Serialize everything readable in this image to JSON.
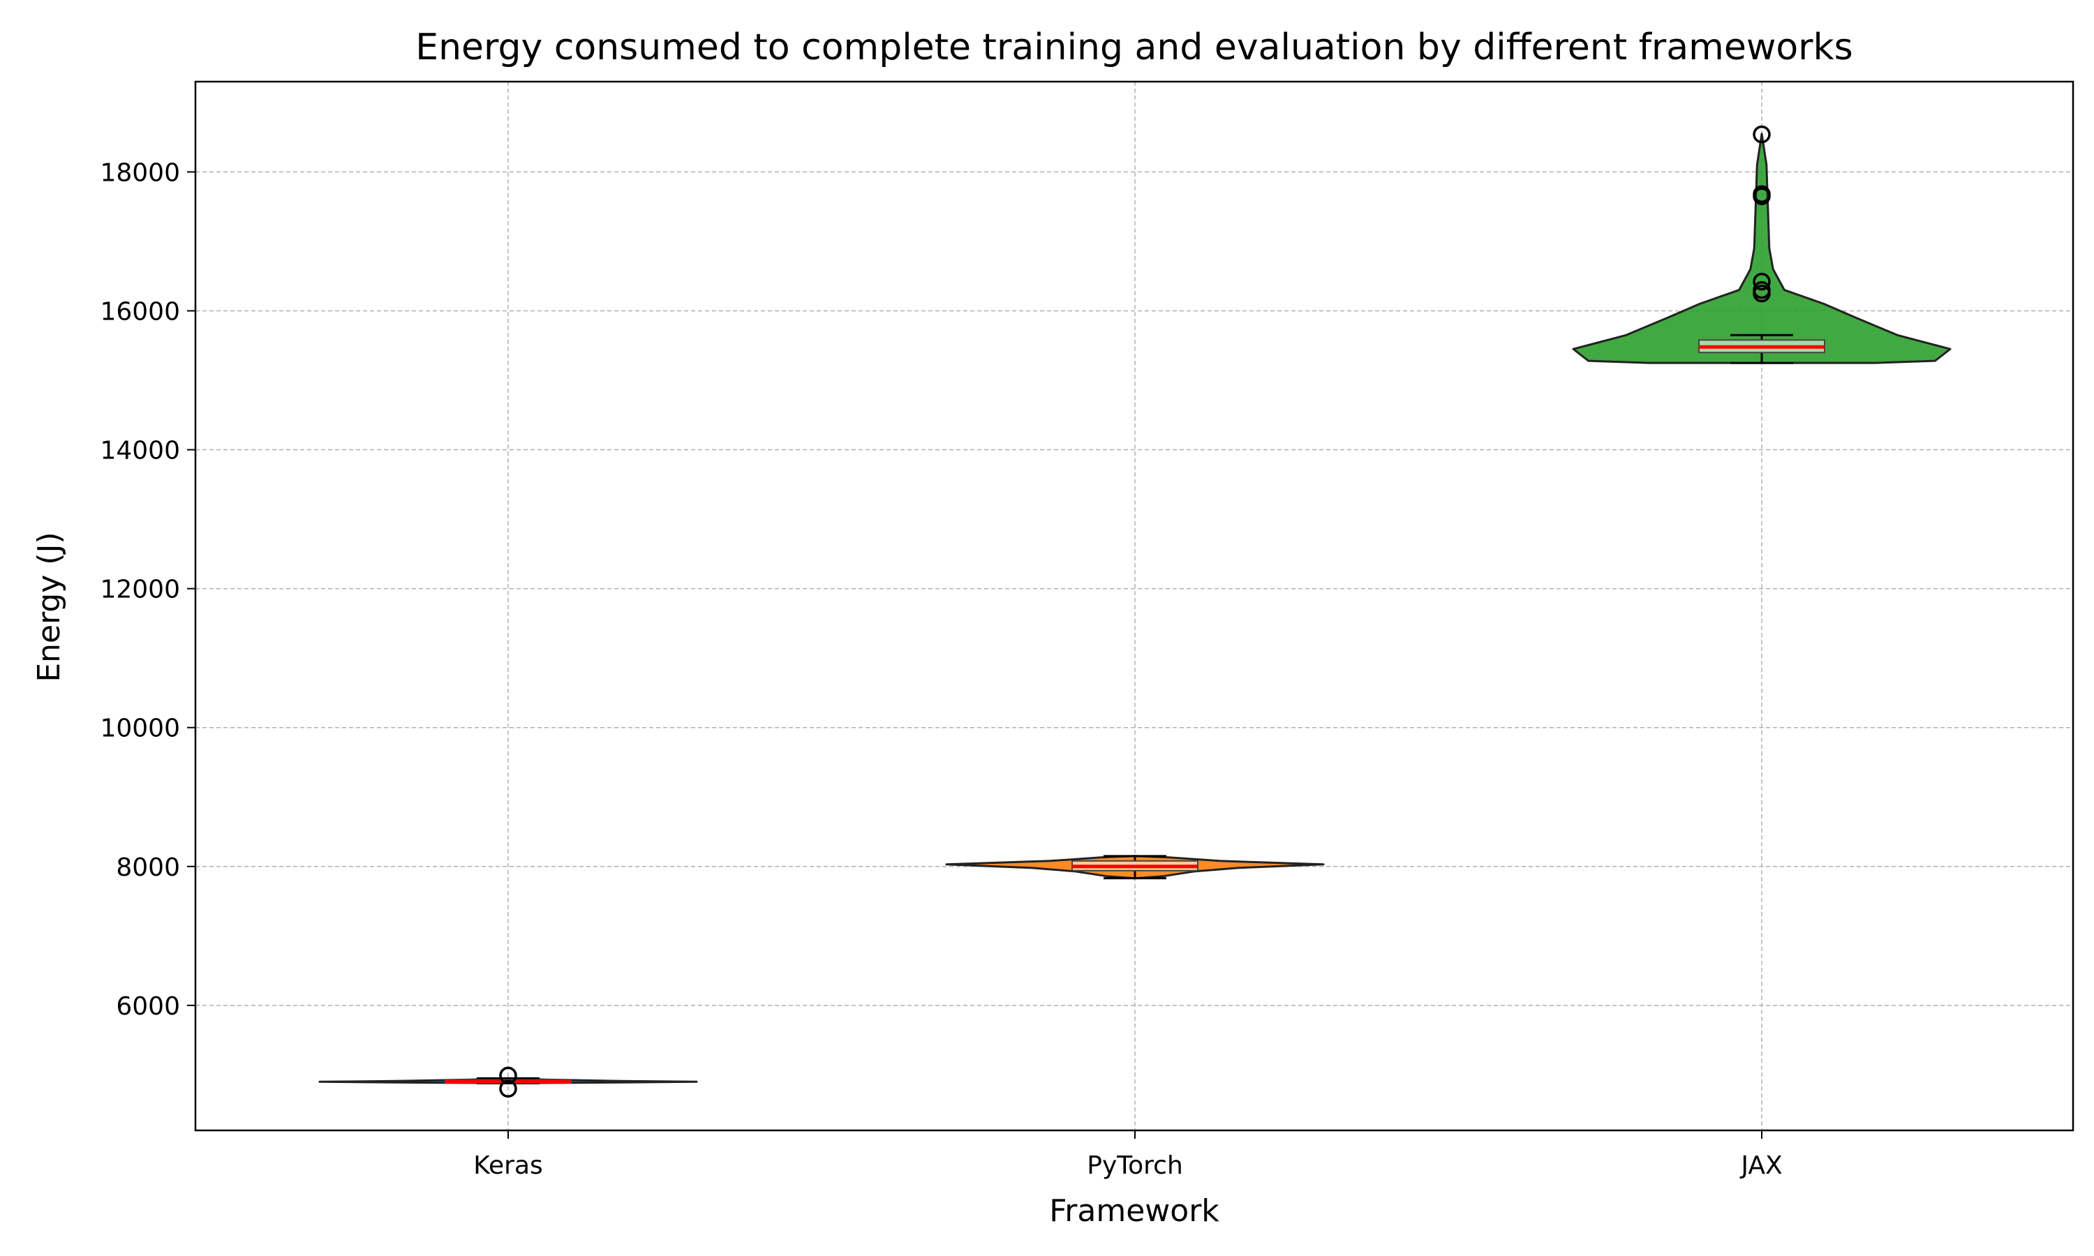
{
  "chart_data": {
    "type": "violin",
    "title": "Energy consumed to complete training and evaluation by different frameworks",
    "xlabel": "Framework",
    "ylabel": "Energy (J)",
    "categories": [
      "Keras",
      "PyTorch",
      "JAX"
    ],
    "ylim": [
      4200,
      19300
    ],
    "yticks": [
      6000,
      8000,
      10000,
      12000,
      14000,
      16000,
      18000
    ],
    "ytick_labels": [
      "6000",
      "8000",
      "10000",
      "12000",
      "14000",
      "16000",
      "18000"
    ],
    "grid": true,
    "median_color": "#ff0000",
    "series": [
      {
        "category": "Keras",
        "color": "#1f77b4",
        "min": 4880,
        "q1": 4885,
        "median": 4900,
        "q3": 4930,
        "max": 4950,
        "outliers": [
          4800,
          4990
        ],
        "density": [
          [
            4880,
            0.0
          ],
          [
            4890,
            0.6
          ],
          [
            4900,
            1.0
          ],
          [
            4910,
            0.6
          ],
          [
            4930,
            0.2
          ],
          [
            4950,
            0.0
          ]
        ]
      },
      {
        "category": "PyTorch",
        "color": "#ff7f0e",
        "min": 7830,
        "q1": 7940,
        "median": 8000,
        "q3": 8080,
        "max": 8150,
        "outliers": [],
        "density": [
          [
            7830,
            0.0
          ],
          [
            7860,
            0.15
          ],
          [
            7930,
            0.32
          ],
          [
            7980,
            0.55
          ],
          [
            8030,
            1.0
          ],
          [
            8080,
            0.45
          ],
          [
            8130,
            0.18
          ],
          [
            8150,
            0.0
          ]
        ]
      },
      {
        "category": "JAX",
        "color": "#2ca02c",
        "min": 15250,
        "q1": 15400,
        "median": 15480,
        "q3": 15580,
        "max": 15650,
        "outliers": [
          16250,
          16300,
          16420,
          17650,
          17680,
          18540
        ],
        "density": [
          [
            15250,
            0.6
          ],
          [
            15280,
            0.92
          ],
          [
            15450,
            1.0
          ],
          [
            15650,
            0.72
          ],
          [
            15900,
            0.5
          ],
          [
            16100,
            0.33
          ],
          [
            16300,
            0.12
          ],
          [
            16600,
            0.06
          ],
          [
            16900,
            0.04
          ],
          [
            17300,
            0.035
          ],
          [
            17700,
            0.03
          ],
          [
            18100,
            0.025
          ],
          [
            18550,
            0.0
          ]
        ]
      }
    ]
  }
}
